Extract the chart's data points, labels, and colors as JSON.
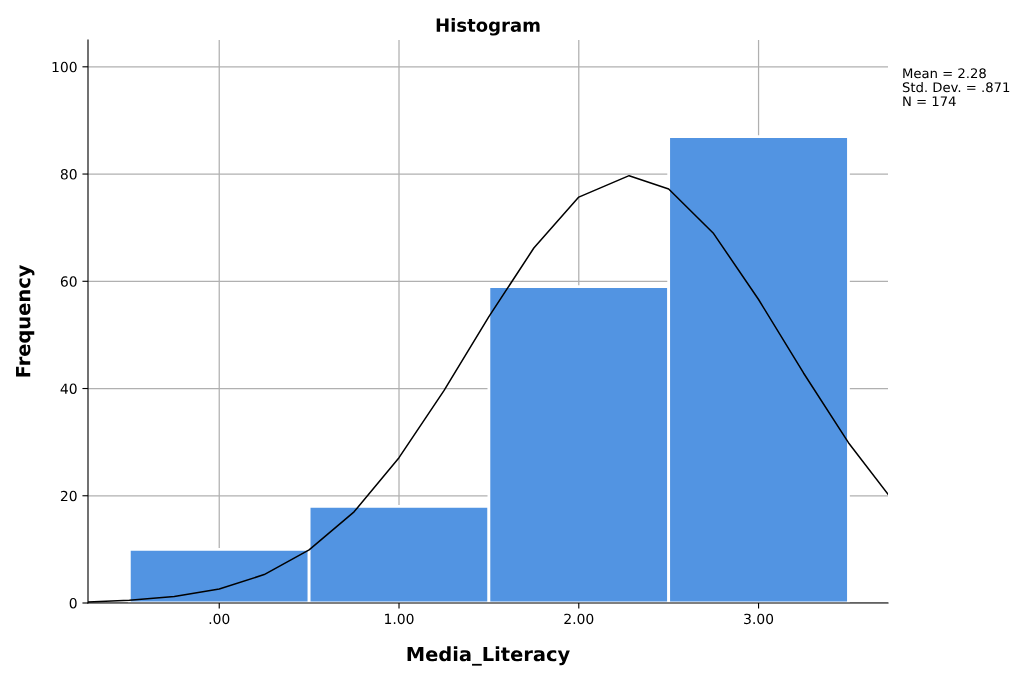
{
  "chart_data": {
    "type": "histogram",
    "title": "Histogram",
    "xlabel": "Media_Literacy",
    "ylabel": "Frequency",
    "bins": [
      -0.5,
      0.5,
      1.5,
      2.5,
      3.5
    ],
    "values": [
      10,
      18,
      59,
      87
    ],
    "color": "#5294e2",
    "series": [
      {
        "type": "line",
        "color": "#000000",
        "x": [
          -0.73,
          -0.5,
          -0.25,
          0,
          0.25,
          0.5,
          0.75,
          1,
          1.25,
          1.5,
          1.75,
          2,
          2.28,
          2.5,
          2.75,
          3,
          3.25,
          3.5,
          3.72
        ],
        "values": [
          0.2,
          0.5,
          1.2,
          2.6,
          5.3,
          9.9,
          17.0,
          27.1,
          39.6,
          53.4,
          66.2,
          75.7,
          79.7,
          77.2,
          68.9,
          56.6,
          42.9,
          29.9,
          20.3
        ]
      }
    ],
    "xlim": [
      -0.73,
      3.72
    ],
    "xticks": [
      {
        "value": 0,
        "label": ".00"
      },
      {
        "value": 1,
        "label": "1.00"
      },
      {
        "value": 2,
        "label": "2.00"
      },
      {
        "value": 3,
        "label": "3.00"
      }
    ],
    "ylim": [
      0,
      105
    ],
    "yticks": [
      0,
      20,
      40,
      60,
      80,
      100
    ],
    "grid": true,
    "annotations": [
      "Mean = 2.28",
      "Std. Dev. = .871",
      "N = 174"
    ]
  }
}
